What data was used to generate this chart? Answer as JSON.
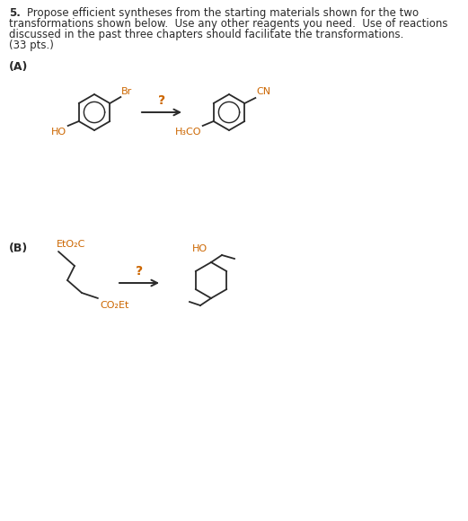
{
  "background_color": "#ffffff",
  "text_color": "#2a2a2a",
  "orange_color": "#cc6600",
  "line_color": "#2a2a2a",
  "font_size_body": 8.5,
  "font_size_label": 9.0,
  "font_size_chem": 8.0,
  "font_size_question": 10.0,
  "header_lines": [
    [
      "bold",
      "5.    ",
      "normal",
      "Propose efficient syntheses from the starting materials shown for the two"
    ],
    [
      "normal",
      "transformations shown below.  Use any other reagents you need.  Use of reactions"
    ],
    [
      "normal",
      "discussed in the past three chapters should facilitate the transformations."
    ],
    [
      "normal",
      "(33 pts.)"
    ]
  ]
}
